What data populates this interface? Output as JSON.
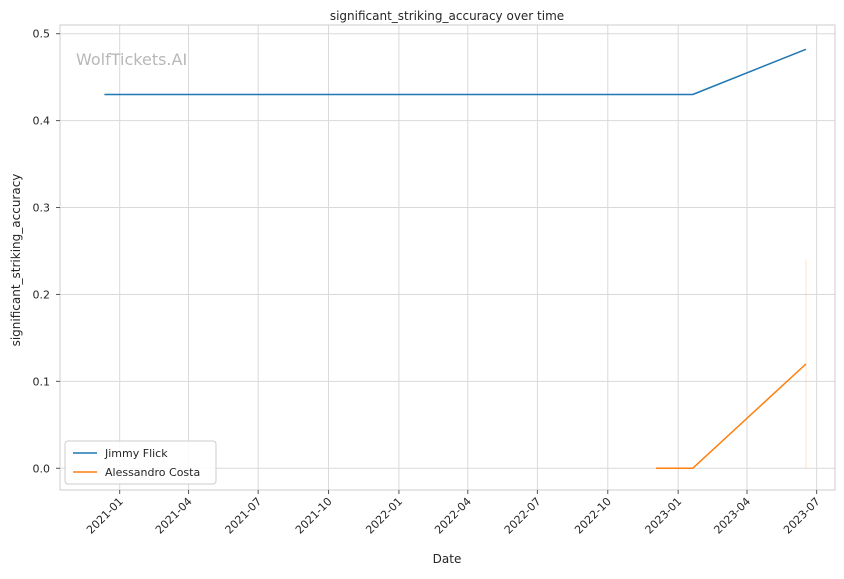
{
  "chart_data": {
    "type": "line",
    "title": "significant_striking_accuracy over time",
    "xlabel": "Date",
    "ylabel": "significant_striking_accuracy",
    "watermark": "WolfTickets.AI",
    "x_axis": {
      "type": "date",
      "range": [
        "2020-10-15",
        "2023-07-25"
      ],
      "tick_dates": [
        "2021-01-01",
        "2021-04-01",
        "2021-07-01",
        "2021-10-01",
        "2022-01-01",
        "2022-04-01",
        "2022-07-01",
        "2022-10-01",
        "2023-01-01",
        "2023-04-01",
        "2023-07-01"
      ],
      "tick_labels": [
        "2021-01",
        "2021-04",
        "2021-07",
        "2021-10",
        "2022-01",
        "2022-04",
        "2022-07",
        "2022-10",
        "2023-01",
        "2023-04",
        "2023-07"
      ]
    },
    "y_axis": {
      "range": [
        -0.025,
        0.51
      ],
      "ticks": [
        0.0,
        0.1,
        0.2,
        0.3,
        0.4,
        0.5
      ],
      "tick_labels": [
        "0.0",
        "0.1",
        "0.2",
        "0.3",
        "0.4",
        "0.5"
      ]
    },
    "grid": true,
    "legend_position": "lower-left",
    "series": [
      {
        "name": "Jimmy Flick",
        "color": "#1f77b4",
        "points": [
          {
            "x": "2020-12-12",
            "y": 0.43
          },
          {
            "x": "2023-01-20",
            "y": 0.43
          },
          {
            "x": "2023-06-17",
            "y": 0.482
          }
        ]
      },
      {
        "name": "Alessandro Costa",
        "color": "#ff7f0e",
        "points": [
          {
            "x": "2022-12-03",
            "y": 0.0
          },
          {
            "x": "2023-01-20",
            "y": 0.0
          },
          {
            "x": "2023-06-17",
            "y": 0.12
          }
        ],
        "band": {
          "x": "2023-06-17",
          "low": 0.0,
          "high": 0.24
        }
      }
    ]
  }
}
